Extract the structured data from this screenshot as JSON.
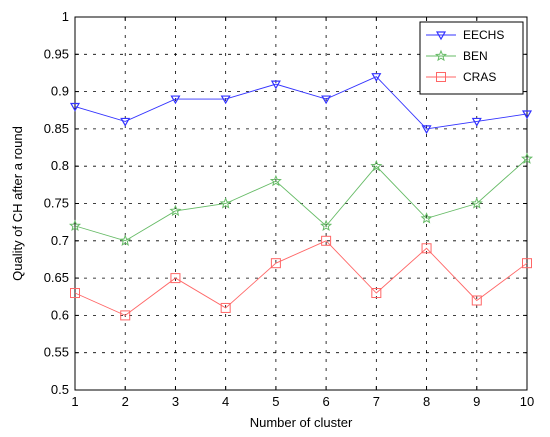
{
  "chart_data": {
    "type": "line",
    "title": "",
    "xlabel": "Number of cluster",
    "ylabel": "Quality of CH after a round",
    "x": [
      1,
      2,
      3,
      4,
      5,
      6,
      7,
      8,
      9,
      10
    ],
    "xlim": [
      1,
      10
    ],
    "ylim": [
      0.5,
      1.0
    ],
    "xticks": [
      "1",
      "2",
      "3",
      "4",
      "5",
      "6",
      "7",
      "8",
      "9",
      "10"
    ],
    "yticks": [
      "0.5",
      "0.55",
      "0.6",
      "0.65",
      "0.7",
      "0.75",
      "0.8",
      "0.85",
      "0.9",
      "0.95",
      "1"
    ],
    "grid": true,
    "legend_position": "top-right",
    "series": [
      {
        "name": "EECHS",
        "color": "#3333ff",
        "marker": "triangle-icon",
        "values": [
          0.88,
          0.86,
          0.89,
          0.89,
          0.91,
          0.89,
          0.92,
          0.85,
          0.86,
          0.87
        ]
      },
      {
        "name": "BEN",
        "color": "#66bb66",
        "marker": "star-icon",
        "values": [
          0.72,
          0.7,
          0.74,
          0.75,
          0.78,
          0.72,
          0.8,
          0.73,
          0.75,
          0.81
        ]
      },
      {
        "name": "CRAS",
        "color": "#ff6666",
        "marker": "square-icon",
        "values": [
          0.63,
          0.6,
          0.65,
          0.61,
          0.67,
          0.7,
          0.63,
          0.69,
          0.62,
          0.67
        ]
      }
    ]
  }
}
